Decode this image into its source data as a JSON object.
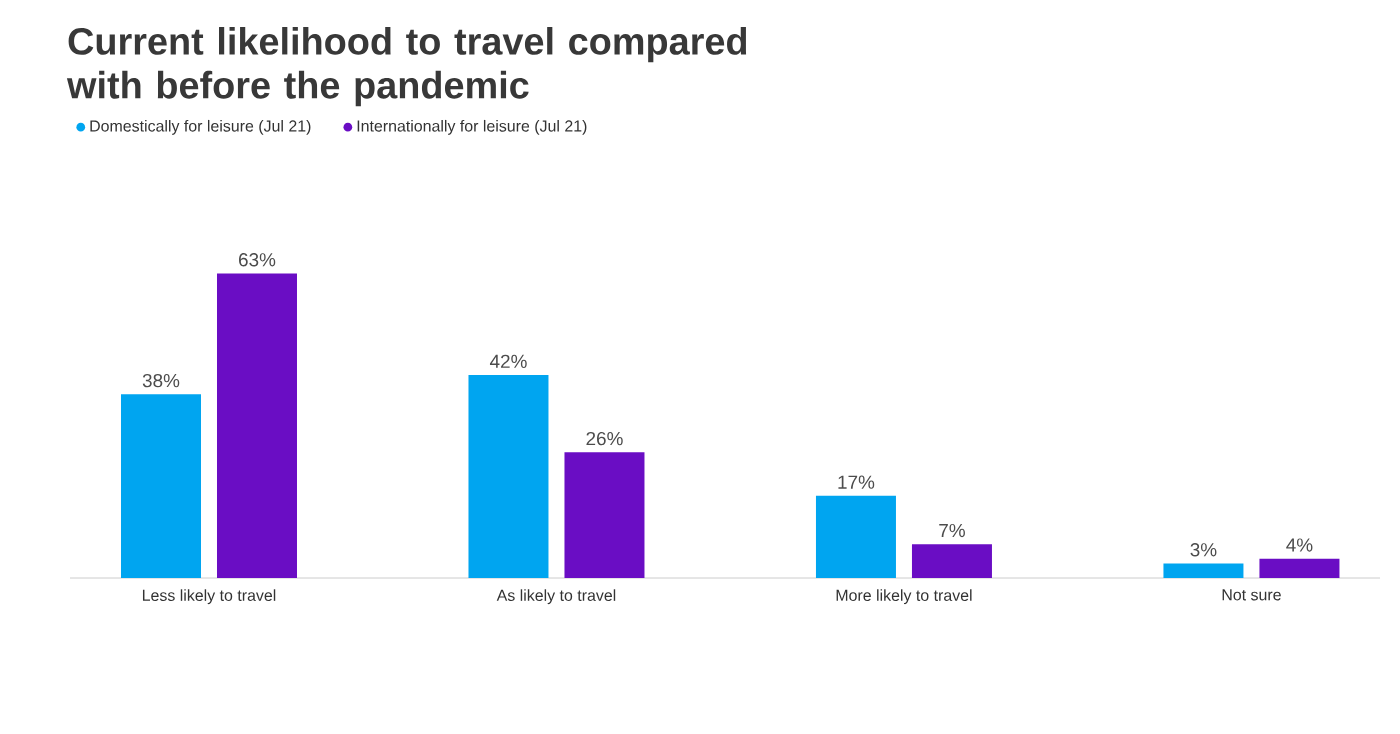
{
  "chart_data": {
    "type": "bar",
    "title": "Current likelihood to travel compared with before the pandemic",
    "categories": [
      "Less likely to travel",
      "As likely to travel",
      "More likely to travel",
      "Not sure"
    ],
    "series": [
      {
        "name": "Domestically for leisure (Jul 21)",
        "color": "#00a5f0",
        "values": [
          38,
          42,
          17,
          3
        ],
        "value_labels": [
          "38%",
          "42%",
          "17%",
          "3%"
        ]
      },
      {
        "name": "Internationally for leisure (Jul 21)",
        "color": "#6a0dc4",
        "values": [
          63,
          26,
          7,
          4
        ],
        "value_labels": [
          "63%",
          "26%",
          "7%",
          "4%"
        ]
      }
    ],
    "legend": "top left",
    "tick_labels": "x"
  }
}
